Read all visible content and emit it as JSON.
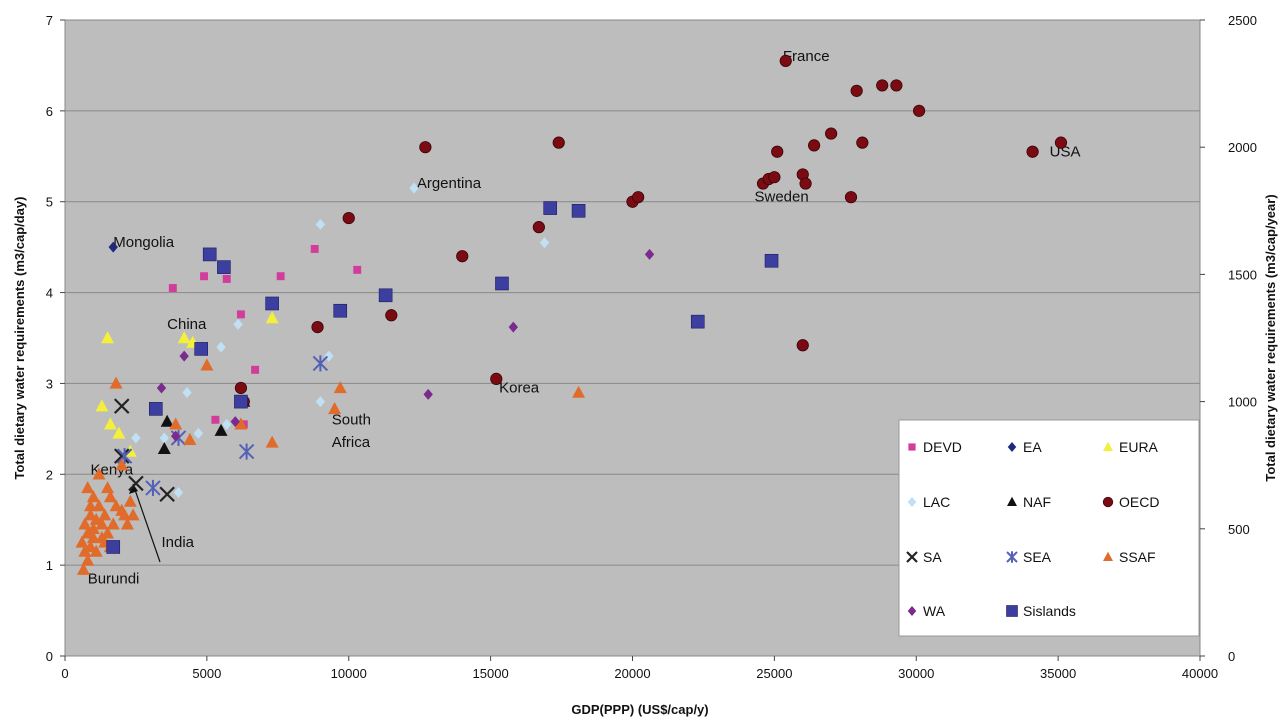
{
  "chart_data": {
    "type": "scatter",
    "xlabel": "GDP(PPP) (US$/cap/y)",
    "ylabel": "Total dietary water requirements (m3/cap/day)",
    "y2label": "Total dietary water requirements (m3/cap/year)",
    "xlim": [
      0,
      40000
    ],
    "ylim": [
      0,
      7
    ],
    "y2lim": [
      0,
      2500
    ],
    "x_ticks": [
      "0",
      "5000",
      "10000",
      "15000",
      "20000",
      "25000",
      "30000",
      "35000",
      "40000"
    ],
    "y_ticks": [
      "0",
      "1",
      "2",
      "3",
      "4",
      "5",
      "6",
      "7"
    ],
    "y2_ticks": [
      "0",
      "500",
      "1000",
      "1500",
      "2000",
      "2500"
    ],
    "grid": "horizontal",
    "legend_position": "bottom-right",
    "annotations": [
      {
        "text": "France",
        "x": 25300,
        "y": 6.55
      },
      {
        "text": "USA",
        "x": 34700,
        "y": 5.5
      },
      {
        "text": "Sweden",
        "x": 24300,
        "y": 5.0
      },
      {
        "text": "Argentina",
        "x": 12400,
        "y": 5.15
      },
      {
        "text": "Mongolia",
        "x": 1700,
        "y": 4.5
      },
      {
        "text": "China",
        "x": 3600,
        "y": 3.6
      },
      {
        "text": "Korea",
        "x": 15300,
        "y": 2.9
      },
      {
        "text": "South",
        "x": 9400,
        "y": 2.55
      },
      {
        "text": "Africa",
        "x": 9400,
        "y": 2.3
      },
      {
        "text": "Kenya",
        "x": 900,
        "y": 2.0
      },
      {
        "text": "India",
        "x": 3400,
        "y": 1.2
      },
      {
        "text": "Burundi",
        "x": 800,
        "y": 0.8
      }
    ],
    "series": [
      {
        "name": "DEVD",
        "marker": "square-small",
        "color": "#d23c9a",
        "points": [
          [
            3800,
            4.05
          ],
          [
            4900,
            4.18
          ],
          [
            5700,
            4.15
          ],
          [
            6200,
            3.76
          ],
          [
            7600,
            4.18
          ],
          [
            8800,
            4.48
          ],
          [
            10300,
            4.25
          ],
          [
            5300,
            2.6
          ],
          [
            6700,
            3.15
          ],
          [
            6300,
            2.55
          ]
        ]
      },
      {
        "name": "EA",
        "marker": "diamond",
        "color": "#1f2a7a",
        "points": [
          [
            1700,
            4.5
          ]
        ]
      },
      {
        "name": "EURA",
        "marker": "triangle",
        "color": "#f3ef3a",
        "points": [
          [
            1500,
            3.5
          ],
          [
            1300,
            2.75
          ],
          [
            1600,
            2.55
          ],
          [
            1900,
            2.45
          ],
          [
            2300,
            2.25
          ],
          [
            4200,
            3.5
          ],
          [
            4500,
            3.45
          ],
          [
            7300,
            3.72
          ]
        ]
      },
      {
        "name": "LAC",
        "marker": "diamond",
        "color": "#bfe0f5",
        "points": [
          [
            12300,
            5.15
          ],
          [
            9000,
            4.75
          ],
          [
            16900,
            4.55
          ],
          [
            6100,
            3.65
          ],
          [
            5500,
            3.4
          ],
          [
            9300,
            3.3
          ],
          [
            4300,
            2.9
          ],
          [
            5700,
            2.55
          ],
          [
            3500,
            2.4
          ],
          [
            4700,
            2.45
          ],
          [
            2500,
            2.4
          ],
          [
            4000,
            1.8
          ],
          [
            9000,
            2.8
          ]
        ]
      },
      {
        "name": "NAF",
        "marker": "triangle",
        "color": "#111111",
        "points": [
          [
            3600,
            2.58
          ],
          [
            3500,
            2.28
          ],
          [
            5500,
            2.48
          ],
          [
            6300,
            2.8
          ]
        ]
      },
      {
        "name": "OECD",
        "marker": "circle",
        "color": "#7a0b12",
        "points": [
          [
            25400,
            6.55
          ],
          [
            27900,
            6.22
          ],
          [
            28800,
            6.28
          ],
          [
            29300,
            6.28
          ],
          [
            30100,
            6.0
          ],
          [
            27000,
            5.75
          ],
          [
            28100,
            5.65
          ],
          [
            26400,
            5.62
          ],
          [
            25100,
            5.55
          ],
          [
            24600,
            5.2
          ],
          [
            24800,
            5.25
          ],
          [
            25000,
            5.27
          ],
          [
            26000,
            5.3
          ],
          [
            26100,
            5.2
          ],
          [
            27700,
            5.05
          ],
          [
            34100,
            5.55
          ],
          [
            35100,
            5.65
          ],
          [
            12700,
            5.6
          ],
          [
            17400,
            5.65
          ],
          [
            20000,
            5.0
          ],
          [
            20200,
            5.05
          ],
          [
            16700,
            4.72
          ],
          [
            10000,
            4.82
          ],
          [
            14000,
            4.4
          ],
          [
            11500,
            3.75
          ],
          [
            8900,
            3.62
          ],
          [
            15200,
            3.05
          ],
          [
            26000,
            3.42
          ],
          [
            6200,
            2.95
          ],
          [
            6300,
            2.8
          ]
        ]
      },
      {
        "name": "SA",
        "marker": "x",
        "color": "#222222",
        "points": [
          [
            2000,
            2.75
          ],
          [
            2500,
            1.9
          ],
          [
            3600,
            1.78
          ],
          [
            2000,
            2.2
          ]
        ]
      },
      {
        "name": "SEA",
        "marker": "star",
        "color": "#5560b8",
        "points": [
          [
            9000,
            3.22
          ],
          [
            6400,
            2.25
          ],
          [
            3100,
            1.85
          ],
          [
            4000,
            2.4
          ],
          [
            2100,
            2.2
          ]
        ]
      },
      {
        "name": "SSAF",
        "marker": "triangle",
        "color": "#e06b2a",
        "points": [
          [
            1800,
            3.0
          ],
          [
            5000,
            3.2
          ],
          [
            9700,
            2.95
          ],
          [
            9500,
            2.72
          ],
          [
            7300,
            2.35
          ],
          [
            4400,
            2.38
          ],
          [
            6200,
            2.55
          ],
          [
            18100,
            2.9
          ],
          [
            2000,
            2.1
          ],
          [
            3900,
            2.55
          ],
          [
            800,
            1.85
          ],
          [
            1000,
            1.75
          ],
          [
            1200,
            1.65
          ],
          [
            1400,
            1.55
          ],
          [
            1600,
            1.75
          ],
          [
            1800,
            1.65
          ],
          [
            2100,
            1.55
          ],
          [
            2300,
            1.7
          ],
          [
            900,
            1.55
          ],
          [
            1100,
            1.5
          ],
          [
            1300,
            1.45
          ],
          [
            700,
            1.45
          ],
          [
            800,
            1.35
          ],
          [
            1000,
            1.3
          ],
          [
            600,
            1.25
          ],
          [
            900,
            1.2
          ],
          [
            1100,
            1.15
          ],
          [
            1300,
            1.3
          ],
          [
            1500,
            1.35
          ],
          [
            1700,
            1.45
          ],
          [
            2000,
            1.6
          ],
          [
            2200,
            1.45
          ],
          [
            2400,
            1.55
          ],
          [
            1500,
            1.85
          ],
          [
            1200,
            2.0
          ],
          [
            700,
            1.15
          ],
          [
            800,
            1.05
          ],
          [
            650,
            0.95
          ],
          [
            1000,
            1.4
          ],
          [
            1400,
            1.25
          ],
          [
            1600,
            1.2
          ],
          [
            900,
            1.65
          ]
        ]
      },
      {
        "name": "WA",
        "marker": "diamond",
        "color": "#7b2a8e",
        "points": [
          [
            20600,
            4.42
          ],
          [
            15800,
            3.62
          ],
          [
            12800,
            2.88
          ],
          [
            4200,
            3.3
          ],
          [
            3400,
            2.95
          ],
          [
            3900,
            2.42
          ],
          [
            6000,
            2.58
          ]
        ]
      },
      {
        "name": "Sislands",
        "marker": "square",
        "color": "#3c3fa0",
        "points": [
          [
            5100,
            4.42
          ],
          [
            5600,
            4.28
          ],
          [
            17100,
            4.93
          ],
          [
            18100,
            4.9
          ],
          [
            24900,
            4.35
          ],
          [
            15400,
            4.1
          ],
          [
            11300,
            3.97
          ],
          [
            7300,
            3.88
          ],
          [
            9700,
            3.8
          ],
          [
            22300,
            3.68
          ],
          [
            4800,
            3.38
          ],
          [
            3200,
            2.72
          ],
          [
            6200,
            2.8
          ],
          [
            1700,
            1.2
          ]
        ]
      }
    ]
  }
}
